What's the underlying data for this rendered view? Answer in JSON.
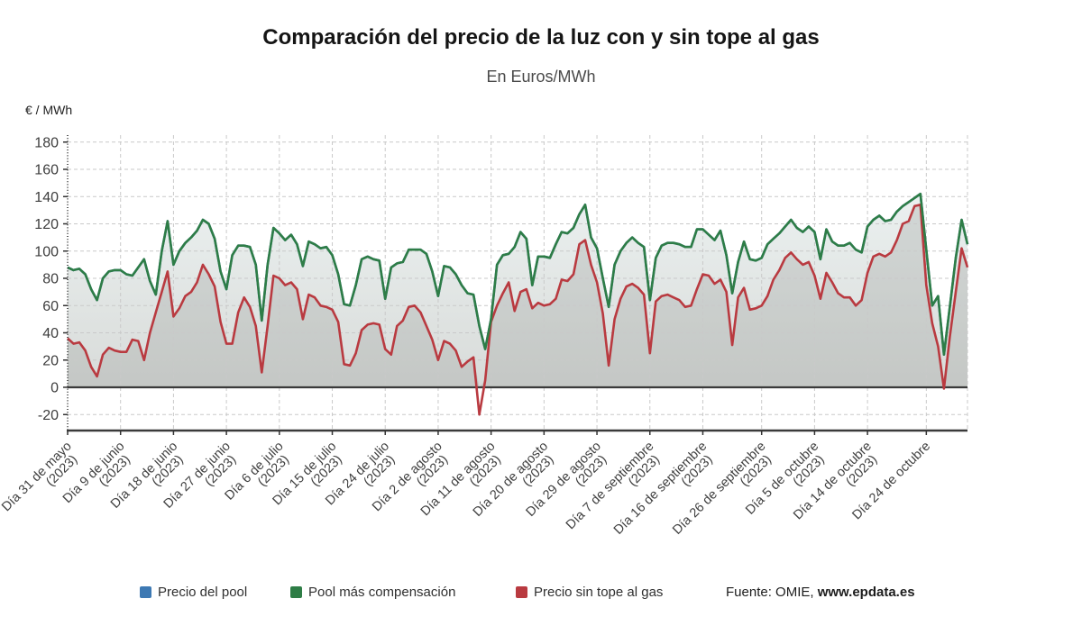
{
  "header": {
    "title": "Comparación del precio de la luz con y sin tope al gas",
    "subtitle": "En Euros/MWh"
  },
  "chart_data": {
    "type": "line",
    "title": "Comparación del precio de la luz con y sin tope al gas",
    "subtitle": "En Euros/MWh",
    "ylabel": "€ / MWh",
    "ylim": [
      -20,
      180
    ],
    "y_ticks": [
      180,
      160,
      140,
      120,
      100,
      80,
      60,
      40,
      20,
      0,
      -20
    ],
    "grid": true,
    "legend_position": "bottom",
    "tick_indices": [
      0,
      9,
      18,
      27,
      36,
      45,
      54,
      63,
      72,
      81,
      90,
      99,
      108,
      118,
      127,
      136,
      146
    ],
    "x_tick_labels": [
      {
        "label": "Día 31 de mayo",
        "year": "(2023)"
      },
      {
        "label": "Día 9 de junio",
        "year": "(2023)"
      },
      {
        "label": "Día 18 de junio",
        "year": "(2023)"
      },
      {
        "label": "Día 27 de junio",
        "year": "(2023)"
      },
      {
        "label": "Día 6 de julio",
        "year": "(2023)"
      },
      {
        "label": "Día 15 de julio",
        "year": "(2023)"
      },
      {
        "label": "Día 24 de julio",
        "year": "(2023)"
      },
      {
        "label": "Día 2 de agosto",
        "year": "(2023)"
      },
      {
        "label": "Día 11 de agosto",
        "year": "(2023)"
      },
      {
        "label": "Día 20 de agosto",
        "year": "(2023)"
      },
      {
        "label": "Día 29 de agosto",
        "year": "(2023)"
      },
      {
        "label": "Día 7 de septiembre",
        "year": "(2023)"
      },
      {
        "label": "Día 16 de septiembre",
        "year": "(2023)"
      },
      {
        "label": "Día 26 de septiembre",
        "year": "(2023)"
      },
      {
        "label": "Día 5 de octubre",
        "year": "(2023)"
      },
      {
        "label": "Día 14 de octubre",
        "year": "(2023)"
      },
      {
        "label": "Día 24 de octubre",
        "year": ""
      }
    ],
    "series": [
      {
        "name": "Precio del pool",
        "color": "#3d79b3",
        "coincides_with": "Pool más compensación"
      },
      {
        "name": "Pool más compensación",
        "color": "#2e7d46",
        "values": [
          88,
          86,
          87,
          83,
          72,
          64,
          80,
          85,
          86,
          86,
          83,
          82,
          88,
          94,
          78,
          68,
          100,
          122,
          90,
          100,
          106,
          110,
          115,
          123,
          120,
          109,
          85,
          72,
          97,
          104,
          104,
          103,
          90,
          49,
          90,
          117,
          113,
          108,
          112,
          105,
          89,
          107,
          105,
          102,
          103,
          97,
          83,
          61,
          60,
          75,
          94,
          96,
          94,
          93,
          65,
          88,
          91,
          92,
          101,
          101,
          101,
          98,
          85,
          67,
          89,
          88,
          83,
          75,
          69,
          68,
          45,
          28,
          50,
          90,
          97,
          98,
          103,
          114,
          109,
          75,
          96,
          96,
          95,
          105,
          114,
          113,
          117,
          127,
          134,
          110,
          102,
          80,
          59,
          90,
          100,
          106,
          110,
          106,
          103,
          64,
          95,
          104,
          106,
          106,
          105,
          103,
          103,
          116,
          116,
          112,
          108,
          115,
          97,
          69,
          92,
          107,
          94,
          93,
          95,
          105,
          109,
          113,
          118,
          123,
          117,
          114,
          118,
          114,
          94,
          116,
          107,
          104,
          104,
          106,
          101,
          99,
          118,
          123,
          126,
          122,
          123,
          129,
          133,
          136,
          139,
          142,
          101,
          60,
          67,
          24,
          59,
          95,
          123,
          105
        ]
      },
      {
        "name": "Precio sin tope al gas",
        "color": "#b93a40",
        "values": [
          36,
          32,
          33,
          27,
          15,
          8,
          24,
          29,
          27,
          26,
          26,
          35,
          34,
          20,
          40,
          55,
          70,
          85,
          52,
          58,
          67,
          70,
          77,
          90,
          83,
          74,
          48,
          32,
          32,
          55,
          66,
          59,
          45,
          11,
          45,
          82,
          80,
          75,
          77,
          72,
          50,
          68,
          66,
          60,
          59,
          57,
          48,
          17,
          16,
          25,
          42,
          46,
          47,
          46,
          28,
          24,
          45,
          49,
          59,
          60,
          55,
          45,
          35,
          20,
          34,
          32,
          27,
          15,
          19,
          22,
          -20,
          5,
          48,
          60,
          69,
          77,
          56,
          70,
          72,
          58,
          62,
          60,
          61,
          65,
          79,
          78,
          83,
          105,
          108,
          90,
          77,
          54,
          16,
          50,
          65,
          74,
          76,
          73,
          68,
          25,
          63,
          67,
          68,
          66,
          64,
          59,
          60,
          72,
          83,
          82,
          76,
          79,
          70,
          31,
          66,
          73,
          57,
          58,
          60,
          67,
          79,
          86,
          95,
          99,
          94,
          90,
          92,
          82,
          65,
          84,
          77,
          69,
          66,
          66,
          60,
          64,
          84,
          96,
          98,
          96,
          99,
          108,
          120,
          122,
          133,
          134,
          75,
          47,
          30,
          -1,
          37,
          70,
          102,
          88
        ]
      }
    ],
    "source_prefix": "Fuente: OMIE, ",
    "source_site": "www.epdata.es"
  }
}
